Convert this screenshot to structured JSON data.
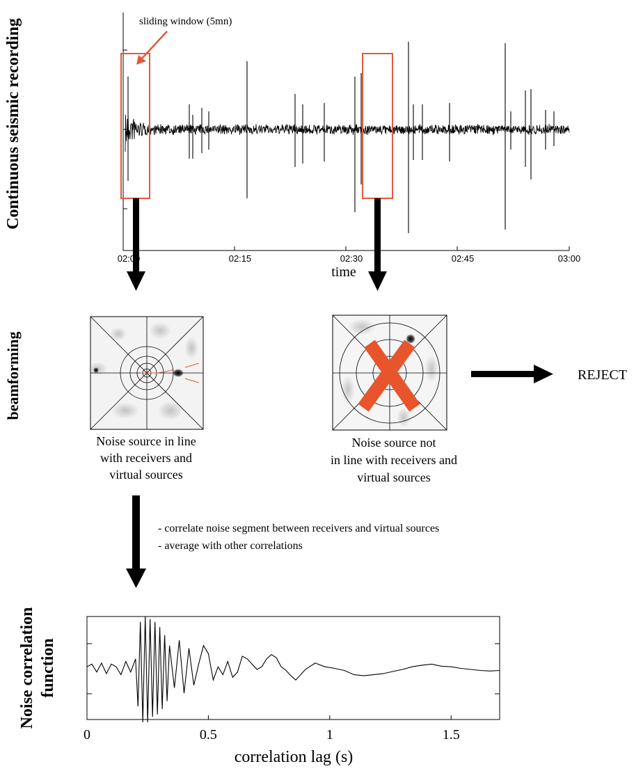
{
  "colors": {
    "window": "#e05a3a",
    "cross": "#e8552c",
    "ink": "#000000"
  },
  "panel1": {
    "ylabel": "Continuous seismic recording",
    "xlabel": "time",
    "ticks": [
      "02:00",
      "02:15",
      "02:30",
      "02:45",
      "03:00"
    ],
    "annotation": "sliding window (5mn)"
  },
  "panel2": {
    "ylabel": "beamforming",
    "accepted_caption": [
      "Noise source in line",
      "with receivers and",
      "virtual sources"
    ],
    "rejected_caption": [
      "Noise source not",
      "in line with receivers and",
      "virtual sources"
    ],
    "reject_label": "REJECT",
    "steps": [
      "- correlate noise segment between receivers and virtual sources",
      "- average with other correlations"
    ]
  },
  "chart_data": {
    "type": "line",
    "title": "",
    "ylabel": "Noise correlation function",
    "xlabel": "correlation lag (s)",
    "x_ticks": [
      "0",
      "0.5",
      "1",
      "1.5"
    ],
    "xlim": [
      0,
      1.7
    ],
    "series": [
      {
        "x": [
          0,
          0.02,
          0.04,
          0.06,
          0.08,
          0.1,
          0.12,
          0.14,
          0.16,
          0.18,
          0.2,
          0.21,
          0.22,
          0.23,
          0.24,
          0.25,
          0.26,
          0.27,
          0.28,
          0.29,
          0.3,
          0.31,
          0.32,
          0.33,
          0.34,
          0.36,
          0.38,
          0.4,
          0.42,
          0.44,
          0.46,
          0.48,
          0.5,
          0.52,
          0.54,
          0.56,
          0.58,
          0.6,
          0.62,
          0.64,
          0.66,
          0.68,
          0.7,
          0.72,
          0.74,
          0.76,
          0.78,
          0.8,
          0.82,
          0.84,
          0.86,
          0.88,
          0.9,
          0.94,
          0.98,
          1.02,
          1.06,
          1.1,
          1.14,
          1.18,
          1.22,
          1.26,
          1.3,
          1.34,
          1.38,
          1.42,
          1.46,
          1.5,
          1.54,
          1.58,
          1.62,
          1.66,
          1.7
        ],
        "y": [
          0.05,
          0.1,
          -0.05,
          0.12,
          -0.08,
          0.1,
          0.05,
          -0.1,
          0.15,
          -0.05,
          0.2,
          -0.7,
          0.9,
          -1.0,
          1.0,
          -1.0,
          0.95,
          -0.9,
          0.9,
          -0.85,
          0.8,
          -0.75,
          0.65,
          -0.6,
          0.45,
          -0.35,
          0.55,
          -0.45,
          0.4,
          -0.3,
          0.1,
          0.45,
          0.3,
          -0.2,
          0.05,
          -0.1,
          0.15,
          -0.15,
          -0.05,
          0.25,
          0.2,
          0.1,
          0.0,
          0.05,
          0.2,
          0.28,
          0.22,
          0.05,
          -0.02,
          -0.12,
          -0.2,
          -0.1,
          0.0,
          0.12,
          0.05,
          0.02,
          -0.02,
          -0.1,
          -0.12,
          -0.1,
          -0.08,
          -0.04,
          0.0,
          0.05,
          0.08,
          0.1,
          0.06,
          0.05,
          0.02,
          0.0,
          -0.02,
          -0.03,
          -0.02
        ]
      }
    ]
  }
}
